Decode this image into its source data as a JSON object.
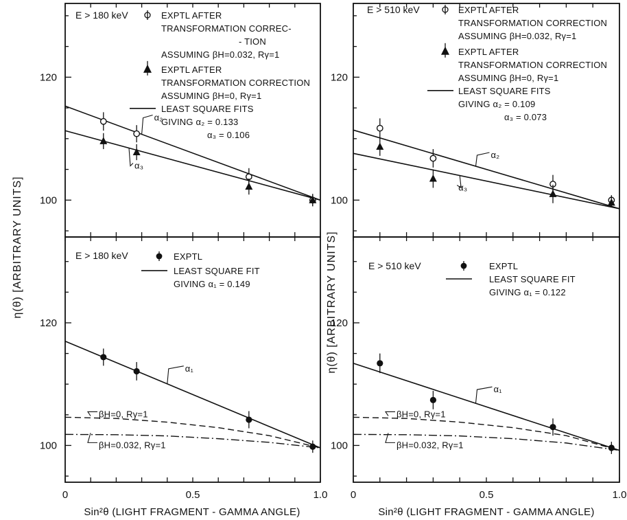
{
  "chart_data": [
    {
      "type": "scatter",
      "panel": "top-left",
      "energy_label": "E  > 180 keV",
      "xlim": [
        0,
        1
      ],
      "ylim": [
        94,
        132
      ],
      "yticks": [
        100,
        120
      ],
      "series": [
        {
          "marker": "open-circle",
          "x": [
            0.15,
            0.28,
            0.72,
            0.97
          ],
          "y": [
            112.8,
            110.8,
            103.8,
            100
          ],
          "err": [
            1.5,
            1.4,
            1.4,
            1.0
          ]
        },
        {
          "marker": "filled-triangle",
          "x": [
            0.15,
            0.28,
            0.72,
            0.97
          ],
          "y": [
            109.6,
            107.8,
            102.2,
            100
          ],
          "err": [
            1.3,
            1.3,
            1.3,
            1.0
          ]
        }
      ],
      "fits": [
        {
          "label": "α₂",
          "y0": 115.3,
          "y1": 100
        },
        {
          "label": "α₃",
          "y0": 111.3,
          "y1": 100
        }
      ],
      "legend": [
        {
          "marker": "open-circle",
          "lines": [
            "EXPTL AFTER",
            "TRANSFORMATION CORREC-",
            "- TION",
            "ASSUMING βH=0.032, Rγ=1"
          ]
        },
        {
          "marker": "filled-triangle",
          "lines": [
            "EXPTL AFTER",
            "TRANSFORMATION CORRECTION",
            "ASSUMING βH=0, Rγ=1"
          ]
        },
        {
          "marker": "line",
          "lines": [
            "LEAST SQUARE FITS",
            "GIVING  α₂ = 0.133",
            "α₃ = 0.106"
          ]
        }
      ]
    },
    {
      "type": "scatter",
      "panel": "top-right",
      "energy_label": "E  > 510 keV",
      "xlim": [
        0,
        1
      ],
      "ylim": [
        94,
        132
      ],
      "yticks": [
        100,
        120
      ],
      "series": [
        {
          "marker": "open-circle",
          "x": [
            0.1,
            0.3,
            0.75,
            0.97
          ],
          "y": [
            111.7,
            106.8,
            102.6,
            100
          ],
          "err": [
            1.6,
            1.5,
            1.5,
            0.8
          ]
        },
        {
          "marker": "filled-triangle",
          "x": [
            0.1,
            0.3,
            0.75,
            0.97
          ],
          "y": [
            108.7,
            103.5,
            101,
            99.6
          ],
          "err": [
            1.5,
            1.5,
            1.5,
            0.8
          ]
        }
      ],
      "fits": [
        {
          "label": "α₂",
          "y0": 111.4,
          "y1": 98.6
        },
        {
          "label": "α₃",
          "y0": 107.6,
          "y1": 98.6
        }
      ],
      "legend": [
        {
          "marker": "open-circle",
          "lines": [
            "EXPTL AFTER",
            "TRANSFORMATION CORRECTION",
            "ASSUMING βH=0.032, Rγ=1"
          ]
        },
        {
          "marker": "filled-triangle",
          "lines": [
            "EXPTL AFTER",
            "TRANSFORMATION CORRECTION",
            "ASSUMING βH=0, Rγ=1"
          ]
        },
        {
          "marker": "line",
          "lines": [
            "LEAST SQUARE FITS",
            "GIVING  α₂ = 0.109",
            "α₃ = 0.073"
          ]
        }
      ]
    },
    {
      "type": "scatter",
      "panel": "bottom-left",
      "energy_label": "E  > 180 keV",
      "xlim": [
        0,
        1
      ],
      "ylim": [
        94,
        134
      ],
      "yticks": [
        100,
        120
      ],
      "series": [
        {
          "marker": "filled-circle",
          "x": [
            0.15,
            0.28,
            0.72,
            0.97
          ],
          "y": [
            114.4,
            112.1,
            104.2,
            99.8
          ],
          "err": [
            1.4,
            1.5,
            1.4,
            1.0
          ]
        }
      ],
      "fits": [
        {
          "label": "α₁",
          "y0": 117,
          "y1": 99.6
        }
      ],
      "curves": [
        {
          "label": "βH=0, Rγ=1",
          "style": "dashed",
          "x": [
            0,
            0.2,
            0.4,
            0.6,
            0.8,
            1.0
          ],
          "y": [
            104.6,
            104.4,
            103.8,
            102.9,
            101.6,
            99.6
          ]
        },
        {
          "label": "βH=0.032, Rγ=1",
          "style": "dash-dot",
          "x": [
            0,
            0.2,
            0.4,
            0.6,
            0.8,
            1.0
          ],
          "y": [
            101.8,
            101.75,
            101.55,
            101.1,
            100.5,
            99.6
          ]
        }
      ],
      "legend": [
        {
          "marker": "filled-circle",
          "lines": [
            "EXPTL"
          ]
        },
        {
          "marker": "line",
          "lines": [
            "LEAST SQUARE FIT",
            "GIVING  α₁ = 0.149"
          ]
        }
      ]
    },
    {
      "type": "scatter",
      "panel": "bottom-right",
      "energy_label": "E  > 510 keV",
      "xlim": [
        0,
        1
      ],
      "ylim": [
        94,
        134
      ],
      "yticks": [
        100,
        120
      ],
      "series": [
        {
          "marker": "filled-circle",
          "x": [
            0.1,
            0.3,
            0.75,
            0.97
          ],
          "y": [
            113.4,
            107.4,
            103,
            99.6
          ],
          "err": [
            1.6,
            1.5,
            1.4,
            1.0
          ]
        }
      ],
      "fits": [
        {
          "label": "α₁",
          "y0": 113.4,
          "y1": 99.2
        }
      ],
      "curves": [
        {
          "label": "βH=0, Rγ=1",
          "style": "dashed",
          "x": [
            0,
            0.2,
            0.4,
            0.6,
            0.8,
            1.0
          ],
          "y": [
            104.6,
            104.4,
            103.8,
            102.9,
            101.6,
            99.2
          ]
        },
        {
          "label": "βH=0.032, Rγ=1",
          "style": "dash-dot",
          "x": [
            0,
            0.2,
            0.4,
            0.6,
            0.8,
            1.0
          ],
          "y": [
            101.8,
            101.75,
            101.55,
            101.1,
            100.4,
            99.2
          ]
        }
      ],
      "legend": [
        {
          "marker": "filled-circle",
          "lines": [
            "EXPTL"
          ]
        },
        {
          "marker": "line",
          "lines": [
            "LEAST SQUARE FIT",
            "GIVING  α₁ = 0.122"
          ]
        }
      ]
    }
  ],
  "axes": {
    "ylabel": "η(θ) [ARBITRARY UNITS]",
    "xlabel": "Sin²θ (LIGHT FRAGMENT - GAMMA ANGLE)",
    "xticks": [
      "0",
      "0.5",
      "1.0"
    ]
  }
}
